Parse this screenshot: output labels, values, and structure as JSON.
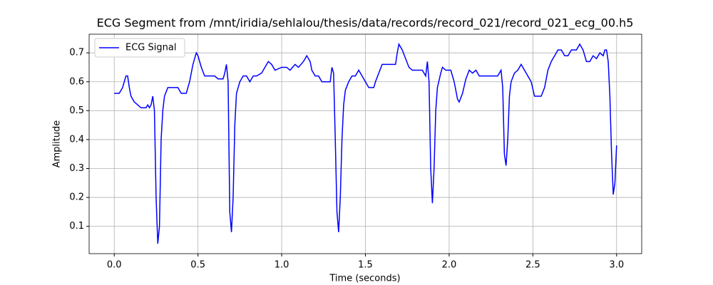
{
  "chart_data": {
    "type": "line",
    "title": "ECG Segment from /mnt/iridia/sehlalou/thesis/data/records/record_021/record_021_ecg_00.h5",
    "xlabel": "Time (seconds)",
    "ylabel": "Amplitude",
    "legend": "upper left",
    "grid": true,
    "xlim": [
      -0.15,
      3.15
    ],
    "ylim": [
      0.0055,
      0.7645
    ],
    "xticks": [
      {
        "value": 0,
        "label": "0.0"
      },
      0.5,
      {
        "value": 1,
        "label": "1.0"
      },
      1.5,
      {
        "value": 2,
        "label": "2.0"
      },
      2.5,
      {
        "value": 3,
        "label": "3.0"
      }
    ],
    "yticks": [
      0.1,
      0.2,
      0.3,
      0.4,
      0.5,
      0.6,
      0.7
    ],
    "series": [
      {
        "name": "ECG Signal",
        "color": "#0000ff",
        "x": [
          0.0,
          0.03,
          0.05,
          0.07,
          0.08,
          0.09,
          0.1,
          0.12,
          0.14,
          0.16,
          0.19,
          0.2,
          0.21,
          0.22,
          0.23,
          0.24,
          0.25,
          0.26,
          0.27,
          0.28,
          0.29,
          0.3,
          0.32,
          0.38,
          0.4,
          0.43,
          0.45,
          0.47,
          0.49,
          0.5,
          0.52,
          0.54,
          0.6,
          0.62,
          0.65,
          0.66,
          0.67,
          0.68,
          0.69,
          0.7,
          0.71,
          0.72,
          0.73,
          0.75,
          0.77,
          0.79,
          0.81,
          0.83,
          0.85,
          0.88,
          0.9,
          0.92,
          0.94,
          0.96,
          1.0,
          1.03,
          1.05,
          1.08,
          1.1,
          1.13,
          1.15,
          1.17,
          1.18,
          1.2,
          1.22,
          1.24,
          1.29,
          1.3,
          1.31,
          1.32,
          1.33,
          1.34,
          1.35,
          1.36,
          1.37,
          1.38,
          1.4,
          1.42,
          1.44,
          1.46,
          1.48,
          1.5,
          1.52,
          1.55,
          1.56,
          1.58,
          1.6,
          1.68,
          1.69,
          1.7,
          1.72,
          1.74,
          1.76,
          1.78,
          1.8,
          1.84,
          1.86,
          1.87,
          1.88,
          1.89,
          1.9,
          1.91,
          1.92,
          1.93,
          1.95,
          1.96,
          1.98,
          2.01,
          2.03,
          2.05,
          2.06,
          2.08,
          2.1,
          2.12,
          2.14,
          2.16,
          2.18,
          2.2,
          2.29,
          2.31,
          2.32,
          2.33,
          2.34,
          2.35,
          2.36,
          2.37,
          2.39,
          2.41,
          2.43,
          2.45,
          2.47,
          2.49,
          2.51,
          2.55,
          2.57,
          2.59,
          2.61,
          2.63,
          2.65,
          2.67,
          2.69,
          2.71,
          2.73,
          2.76,
          2.78,
          2.8,
          2.82,
          2.84,
          2.86,
          2.88,
          2.9,
          2.92,
          2.93,
          2.94,
          2.95,
          2.96,
          2.97,
          2.98,
          2.99,
          3.0
        ],
        "values": [
          0.56,
          0.56,
          0.58,
          0.62,
          0.62,
          0.58,
          0.55,
          0.53,
          0.52,
          0.51,
          0.51,
          0.52,
          0.51,
          0.52,
          0.55,
          0.5,
          0.2,
          0.04,
          0.1,
          0.4,
          0.5,
          0.55,
          0.58,
          0.58,
          0.56,
          0.56,
          0.6,
          0.66,
          0.7,
          0.69,
          0.65,
          0.62,
          0.62,
          0.61,
          0.61,
          0.63,
          0.66,
          0.6,
          0.15,
          0.08,
          0.2,
          0.45,
          0.56,
          0.6,
          0.62,
          0.62,
          0.6,
          0.62,
          0.62,
          0.63,
          0.65,
          0.67,
          0.66,
          0.64,
          0.65,
          0.65,
          0.64,
          0.66,
          0.65,
          0.67,
          0.69,
          0.67,
          0.64,
          0.62,
          0.62,
          0.6,
          0.6,
          0.65,
          0.63,
          0.4,
          0.15,
          0.08,
          0.2,
          0.4,
          0.52,
          0.57,
          0.6,
          0.62,
          0.62,
          0.64,
          0.62,
          0.6,
          0.58,
          0.58,
          0.6,
          0.63,
          0.66,
          0.66,
          0.7,
          0.73,
          0.71,
          0.68,
          0.65,
          0.64,
          0.64,
          0.64,
          0.62,
          0.67,
          0.6,
          0.3,
          0.18,
          0.3,
          0.5,
          0.58,
          0.63,
          0.65,
          0.64,
          0.64,
          0.6,
          0.54,
          0.53,
          0.56,
          0.61,
          0.64,
          0.63,
          0.64,
          0.62,
          0.62,
          0.62,
          0.64,
          0.58,
          0.35,
          0.31,
          0.4,
          0.55,
          0.6,
          0.63,
          0.64,
          0.66,
          0.64,
          0.62,
          0.6,
          0.55,
          0.55,
          0.58,
          0.64,
          0.67,
          0.69,
          0.71,
          0.71,
          0.69,
          0.69,
          0.71,
          0.71,
          0.73,
          0.71,
          0.67,
          0.67,
          0.69,
          0.68,
          0.7,
          0.69,
          0.71,
          0.71,
          0.67,
          0.55,
          0.35,
          0.21,
          0.25,
          0.38
        ]
      }
    ]
  }
}
